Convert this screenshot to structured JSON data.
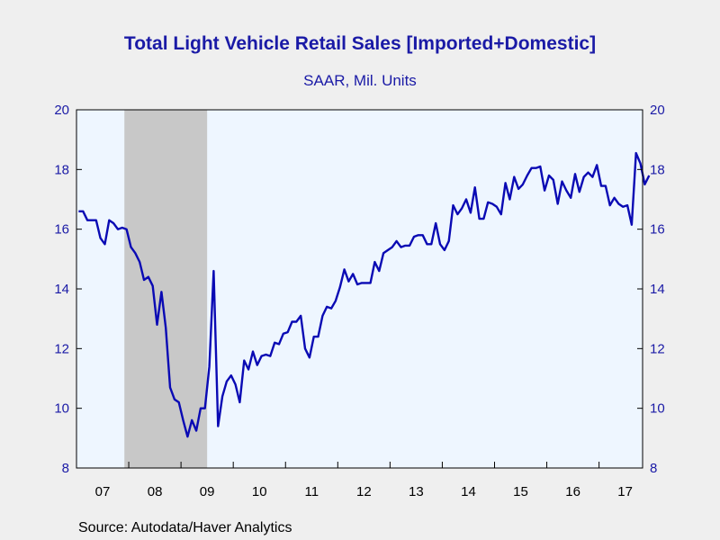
{
  "chart_data": {
    "type": "line",
    "title": "Total Light Vehicle Retail Sales [Imported+Domestic]",
    "subtitle": "SAAR, Mil. Units",
    "source": "Source:  Autodata/Haver Analytics",
    "ylim": [
      8,
      20
    ],
    "yticks": [
      8,
      10,
      12,
      14,
      16,
      18,
      20
    ],
    "y_axis_both_sides": true,
    "x_tick_labels": [
      "07",
      "08",
      "09",
      "10",
      "11",
      "12",
      "13",
      "14",
      "15",
      "16",
      "17"
    ],
    "x_range": [
      "2007-01",
      "2017-10"
    ],
    "frequency": "monthly",
    "grid": false,
    "recession_shading": {
      "start": "2007-12",
      "end": "2009-06"
    },
    "colors": {
      "line": "#0a0ab4",
      "axis_text": "#1a1aa6",
      "plot_bg": "#eef6ff",
      "shade": "#c8c8c8",
      "page_bg": "#efefef"
    },
    "series": [
      {
        "start": "2007-01",
        "values": [
          16.6,
          16.6,
          16.3,
          16.3,
          16.3,
          15.7,
          15.5,
          16.3,
          16.2,
          16.0,
          16.05,
          16.0,
          15.4,
          15.2,
          14.9,
          14.3,
          14.4,
          14.1,
          12.8,
          13.9,
          12.7,
          10.7,
          10.3,
          10.2,
          9.6,
          9.05,
          9.6,
          9.25,
          10.0,
          10.0,
          11.4,
          14.6,
          9.4,
          10.4,
          10.9,
          11.1,
          10.8,
          10.2,
          11.6,
          11.3,
          11.9,
          11.45,
          11.75,
          11.8,
          11.75,
          12.2,
          12.15,
          12.5,
          12.55,
          12.9,
          12.9,
          13.1,
          12.0,
          11.7,
          12.4,
          12.4,
          13.1,
          13.4,
          13.35,
          13.6,
          14.05,
          14.65,
          14.25,
          14.5,
          14.15,
          14.2,
          14.2,
          14.2,
          14.9,
          14.6,
          15.2,
          15.3,
          15.4,
          15.6,
          15.4,
          15.45,
          15.45,
          15.75,
          15.8,
          15.8,
          15.5,
          15.5,
          16.2,
          15.5,
          15.3,
          15.6,
          16.8,
          16.5,
          16.7,
          17.0,
          16.55,
          17.4,
          16.35,
          16.35,
          16.9,
          16.85,
          16.75,
          16.5,
          17.55,
          17.0,
          17.75,
          17.35,
          17.5,
          17.8,
          18.05,
          18.05,
          18.1,
          17.3,
          17.8,
          17.65,
          16.85,
          17.6,
          17.3,
          17.05,
          17.85,
          17.25,
          17.75,
          17.9,
          17.75,
          18.15,
          17.45,
          17.45,
          16.8,
          17.05,
          16.85,
          16.75,
          16.8,
          16.15,
          18.55,
          18.2,
          17.5,
          17.8
        ]
      }
    ]
  }
}
